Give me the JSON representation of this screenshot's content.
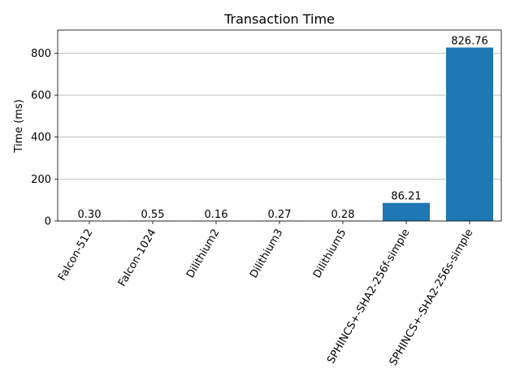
{
  "chart_data": {
    "type": "bar",
    "title": "Transaction Time",
    "xlabel": "",
    "ylabel": "Time (ms)",
    "categories": [
      "Falcon-512",
      "Falcon-1024",
      "Dilithium2",
      "Dilithium3",
      "Dilithium5",
      "SPHINCS+-SHA2-256f-simple",
      "SPHINCS+-SHA2-256s-simple"
    ],
    "values": [
      0.3,
      0.55,
      0.16,
      0.27,
      0.28,
      86.21,
      826.76
    ],
    "value_labels": [
      "0.30",
      "0.55",
      "0.16",
      "0.27",
      "0.28",
      "86.21",
      "826.76"
    ],
    "ylim": [
      0,
      910
    ],
    "yticks": [
      0,
      200,
      400,
      600,
      800
    ],
    "ytick_labels": [
      "0",
      "200",
      "400",
      "600",
      "800"
    ],
    "grid": "y",
    "bar_color": "#1f77b4",
    "xtick_rotation": 60
  }
}
